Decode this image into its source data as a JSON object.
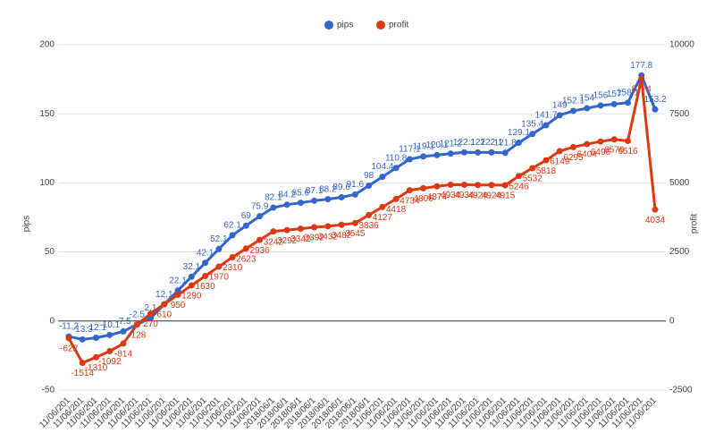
{
  "chart_data": {
    "type": "line",
    "categories": [
      "11/06/201",
      "11/06/201",
      "11/06/201",
      "11/06/201",
      "11/06/201",
      "11/06/201",
      "11/06/201",
      "11/06/201",
      "11/06/201",
      "11/06/201",
      "11/06/201",
      "11/06/201",
      "11/06/201",
      "11/06/201",
      "11/06/201",
      "2018/06/1",
      "2018/06/1",
      "2018/06/1",
      "2018/06/1",
      "2018/06/1",
      "2018/06/1",
      "2018/06/1",
      "2018/06/1",
      "11/06/201",
      "11/06/201",
      "11/06/201",
      "11/06/201",
      "11/06/201",
      "11/06/201",
      "11/06/201",
      "11/06/201",
      "11/06/201",
      "11/06/201",
      "11/06/201",
      "11/06/201",
      "11/06/201",
      "11/06/201",
      "11/06/201",
      "11/06/201",
      "11/06/201",
      "11/06/201",
      "11/06/201",
      "11/06/201",
      "11/06/201"
    ],
    "series": [
      {
        "name": "pips",
        "color": "#3366cc",
        "values": [
          -11.2,
          -13.3,
          -12.1,
          -10.1,
          -7.5,
          -2.5,
          2.1,
          12.1,
          22.1,
          32.1,
          42.1,
          52.1,
          62.1,
          69,
          75.9,
          82.1,
          84.2,
          85.6,
          87.1,
          88.2,
          89.6,
          91.6,
          98,
          104.4,
          110.8,
          117.1,
          119.1,
          120.1,
          121.2,
          122.1,
          122,
          122.1,
          121.8,
          129.1,
          135.4,
          141.7,
          149,
          152.1,
          154,
          156,
          157,
          158.1,
          177.8,
          153.2
        ]
      },
      {
        "name": "profit",
        "color": "#dc3912",
        "axis": "y2",
        "values": [
          -622,
          -1514,
          -1310,
          -1092,
          -814,
          -128,
          270,
          610,
          950,
          1290,
          1630,
          1970,
          2310,
          2623,
          2936,
          3242,
          3292,
          3342,
          3392,
          3432,
          3482,
          3545,
          3836,
          4127,
          4418,
          4734,
          4806,
          4874,
          4934,
          4934,
          4924,
          4924,
          4915,
          5246,
          5532,
          5818,
          6149,
          6295,
          6404,
          6496,
          6576,
          6516,
          8774,
          4034
        ]
      }
    ],
    "ylabel": "pips",
    "y2label": "profit",
    "ylim": [
      -50,
      200
    ],
    "yticks": [
      -50,
      0,
      50,
      100,
      150,
      200
    ],
    "y2lim": [
      -2500,
      10000
    ],
    "y2ticks": [
      -2500,
      0,
      2500,
      5000,
      7500,
      10000
    ],
    "grid": true,
    "legend": "top"
  }
}
